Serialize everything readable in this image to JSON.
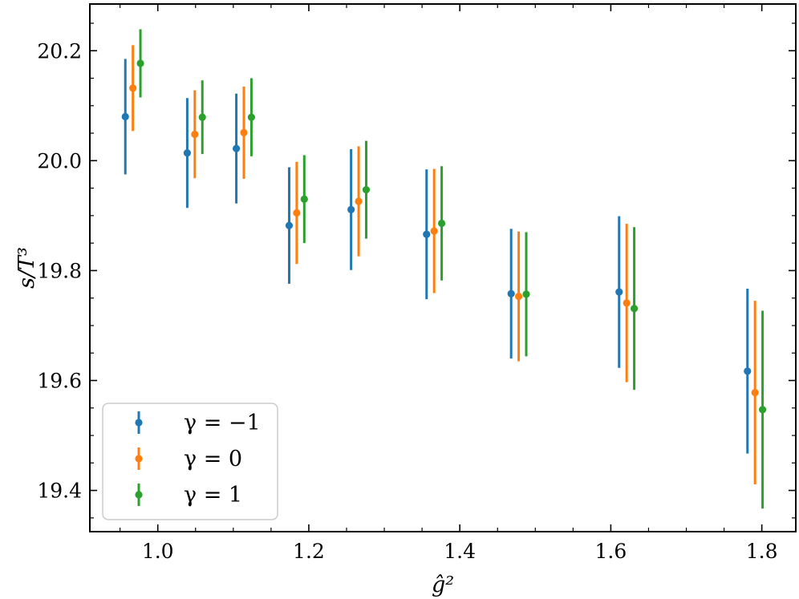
{
  "chart_data": {
    "type": "scatter",
    "title": "",
    "xlabel": "ĝ²",
    "ylabel": "s/T³",
    "xlim": [
      0.91,
      1.845
    ],
    "ylim": [
      19.325,
      20.285
    ],
    "x_ticks": [
      "1.0",
      "1.2",
      "1.4",
      "1.6",
      "1.8"
    ],
    "y_ticks": [
      "19.4",
      "19.6",
      "19.8",
      "20.0",
      "20.2"
    ],
    "legend_position": "bottom-left",
    "series": [
      {
        "name": "γ = −1",
        "color": "#1f77b4",
        "x": [
          0.957,
          1.039,
          1.104,
          1.174,
          1.256,
          1.356,
          1.468,
          1.611,
          1.781
        ],
        "y": [
          20.08,
          20.014,
          20.022,
          19.882,
          19.911,
          19.866,
          19.758,
          19.761,
          19.617
        ],
        "yerr": [
          0.105,
          0.1,
          0.1,
          0.106,
          0.11,
          0.118,
          0.118,
          0.138,
          0.15
        ]
      },
      {
        "name": "γ = 0",
        "color": "#ff7f0e",
        "x": [
          0.967,
          1.049,
          1.114,
          1.184,
          1.266,
          1.366,
          1.478,
          1.621,
          1.791
        ],
        "y": [
          20.132,
          20.048,
          20.051,
          19.905,
          19.926,
          19.872,
          19.753,
          19.741,
          19.578
        ],
        "yerr": [
          0.078,
          0.08,
          0.084,
          0.093,
          0.1,
          0.113,
          0.118,
          0.144,
          0.167
        ]
      },
      {
        "name": "γ = 1",
        "color": "#2ca02c",
        "x": [
          0.977,
          1.059,
          1.124,
          1.194,
          1.276,
          1.376,
          1.488,
          1.631,
          1.801
        ],
        "y": [
          20.177,
          20.079,
          20.079,
          19.93,
          19.947,
          19.886,
          19.757,
          19.731,
          19.547
        ],
        "yerr": [
          0.062,
          0.067,
          0.071,
          0.08,
          0.089,
          0.104,
          0.113,
          0.148,
          0.18
        ]
      }
    ]
  }
}
